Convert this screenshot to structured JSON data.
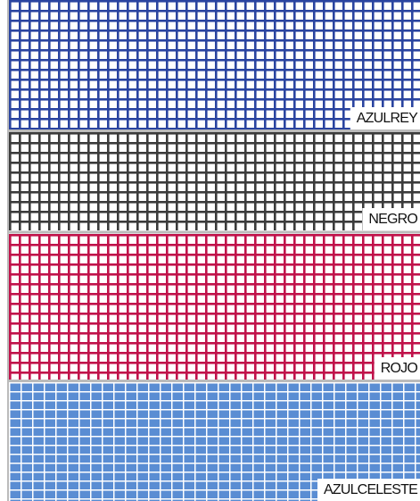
{
  "swatches": [
    {
      "label": "AZULREY",
      "color": "#2a44a0",
      "style": "lines"
    },
    {
      "label": "NEGRO",
      "color": "#3b3b3b",
      "style": "lines"
    },
    {
      "label": "ROJO",
      "color": "#c0124a",
      "style": "lines"
    },
    {
      "label": "AZULCELESTE",
      "color": "#5a8dd3",
      "style": "filled"
    }
  ]
}
